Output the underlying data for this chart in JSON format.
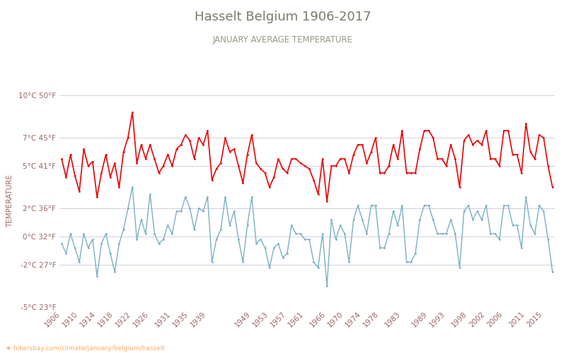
{
  "title": "Hasselt Belgium 1906-2017",
  "subtitle": "JANUARY AVERAGE TEMPERATURE",
  "ylabel": "TEMPERATURE",
  "url_text": "★ hikersbay.com/climate/january/belgium/hasselt",
  "ylim": [
    -5,
    10
  ],
  "yticks_c": [
    -5,
    -2,
    0,
    2,
    5,
    7,
    10
  ],
  "yticks_f": [
    23,
    27,
    32,
    36,
    41,
    45,
    50
  ],
  "title_color": "#7a7a6a",
  "subtitle_color": "#999988",
  "axis_label_color": "#996666",
  "tick_label_color": "#996666",
  "grid_color": "#d0d0e0",
  "day_color": "#ee0000",
  "night_color": "#7ab0c0",
  "background_color": "#ffffff",
  "years": [
    1906,
    1907,
    1908,
    1909,
    1910,
    1911,
    1912,
    1913,
    1914,
    1915,
    1916,
    1917,
    1918,
    1919,
    1920,
    1921,
    1922,
    1923,
    1924,
    1925,
    1926,
    1927,
    1928,
    1929,
    1930,
    1931,
    1932,
    1933,
    1934,
    1935,
    1936,
    1937,
    1938,
    1939,
    1940,
    1941,
    1942,
    1943,
    1944,
    1945,
    1946,
    1947,
    1948,
    1949,
    1950,
    1951,
    1952,
    1953,
    1954,
    1955,
    1956,
    1957,
    1958,
    1959,
    1960,
    1961,
    1962,
    1963,
    1964,
    1965,
    1966,
    1967,
    1968,
    1969,
    1970,
    1971,
    1972,
    1973,
    1974,
    1975,
    1976,
    1977,
    1978,
    1979,
    1980,
    1981,
    1982,
    1983,
    1984,
    1985,
    1986,
    1987,
    1988,
    1989,
    1990,
    1991,
    1992,
    1993,
    1994,
    1995,
    1996,
    1997,
    1998,
    1999,
    2000,
    2001,
    2002,
    2003,
    2004,
    2005,
    2006,
    2007,
    2008,
    2009,
    2010,
    2011,
    2012,
    2013,
    2014,
    2015,
    2016,
    2017
  ],
  "day_temps": [
    5.5,
    4.2,
    5.8,
    4.3,
    3.2,
    6.2,
    5.0,
    5.3,
    2.8,
    4.5,
    5.8,
    4.2,
    5.2,
    3.5,
    6.0,
    7.0,
    8.8,
    5.2,
    6.5,
    5.5,
    6.5,
    5.5,
    4.5,
    5.0,
    5.8,
    5.0,
    6.2,
    6.5,
    7.2,
    6.8,
    5.5,
    7.0,
    6.5,
    7.5,
    4.0,
    4.8,
    5.2,
    7.0,
    6.0,
    6.2,
    5.0,
    3.8,
    5.8,
    7.2,
    5.2,
    4.8,
    4.5,
    3.5,
    4.2,
    5.5,
    4.8,
    4.5,
    5.5,
    5.5,
    5.2,
    5.0,
    4.8,
    4.0,
    3.0,
    5.5,
    2.5,
    5.0,
    5.0,
    5.5,
    5.5,
    4.5,
    5.8,
    6.5,
    6.5,
    5.2,
    6.0,
    7.0,
    4.5,
    4.5,
    5.0,
    6.5,
    5.5,
    7.5,
    4.5,
    4.5,
    4.5,
    6.2,
    7.5,
    7.5,
    7.0,
    5.5,
    5.5,
    5.0,
    6.5,
    5.5,
    3.5,
    6.8,
    7.2,
    6.5,
    6.8,
    6.5,
    7.5,
    5.5,
    5.5,
    5.0,
    7.5,
    7.5,
    5.8,
    5.8,
    4.5,
    8.0,
    6.0,
    5.5,
    7.2,
    7.0,
    5.0,
    3.5
  ],
  "night_temps": [
    -0.5,
    -1.2,
    0.2,
    -0.8,
    -1.8,
    0.2,
    -0.8,
    -0.2,
    -2.8,
    -0.5,
    0.2,
    -1.2,
    -2.5,
    -0.5,
    0.5,
    2.0,
    3.5,
    -0.2,
    1.2,
    0.2,
    3.0,
    0.2,
    -0.5,
    -0.2,
    0.8,
    0.2,
    1.8,
    1.8,
    2.8,
    2.0,
    0.5,
    2.0,
    1.8,
    2.8,
    -1.8,
    -0.2,
    0.5,
    2.8,
    0.8,
    1.8,
    -0.2,
    -1.8,
    0.8,
    2.8,
    -0.5,
    -0.2,
    -0.8,
    -2.2,
    -0.8,
    -0.5,
    -1.5,
    -1.2,
    0.8,
    0.2,
    0.2,
    -0.2,
    -0.2,
    -1.8,
    -2.2,
    0.2,
    -3.5,
    1.2,
    -0.2,
    0.8,
    0.2,
    -1.8,
    1.2,
    2.2,
    1.2,
    0.2,
    2.2,
    2.2,
    -0.8,
    -0.8,
    0.2,
    1.8,
    0.8,
    2.2,
    -1.8,
    -1.8,
    -1.2,
    1.2,
    2.2,
    2.2,
    1.2,
    0.2,
    0.2,
    0.2,
    1.2,
    0.2,
    -2.2,
    1.8,
    2.2,
    1.2,
    1.8,
    1.2,
    2.2,
    0.2,
    0.2,
    -0.2,
    2.2,
    2.2,
    0.8,
    0.8,
    -0.8,
    2.8,
    0.8,
    0.2,
    2.2,
    1.8,
    -0.2,
    -2.5
  ],
  "xtick_labels": [
    "1906",
    "1910",
    "1914",
    "1918",
    "1922",
    "1926",
    "1931",
    "1935",
    "1939",
    "1949",
    "1953",
    "1957",
    "1961",
    "1966",
    "1970",
    "1974",
    "1978",
    "1983",
    "1989",
    "1993",
    "1998",
    "2002",
    "2006",
    "2011",
    "2015"
  ],
  "xtick_positions": [
    1906,
    1910,
    1914,
    1918,
    1922,
    1926,
    1931,
    1935,
    1939,
    1949,
    1953,
    1957,
    1961,
    1966,
    1970,
    1974,
    1978,
    1983,
    1989,
    1993,
    1998,
    2002,
    2006,
    2011,
    2015
  ]
}
